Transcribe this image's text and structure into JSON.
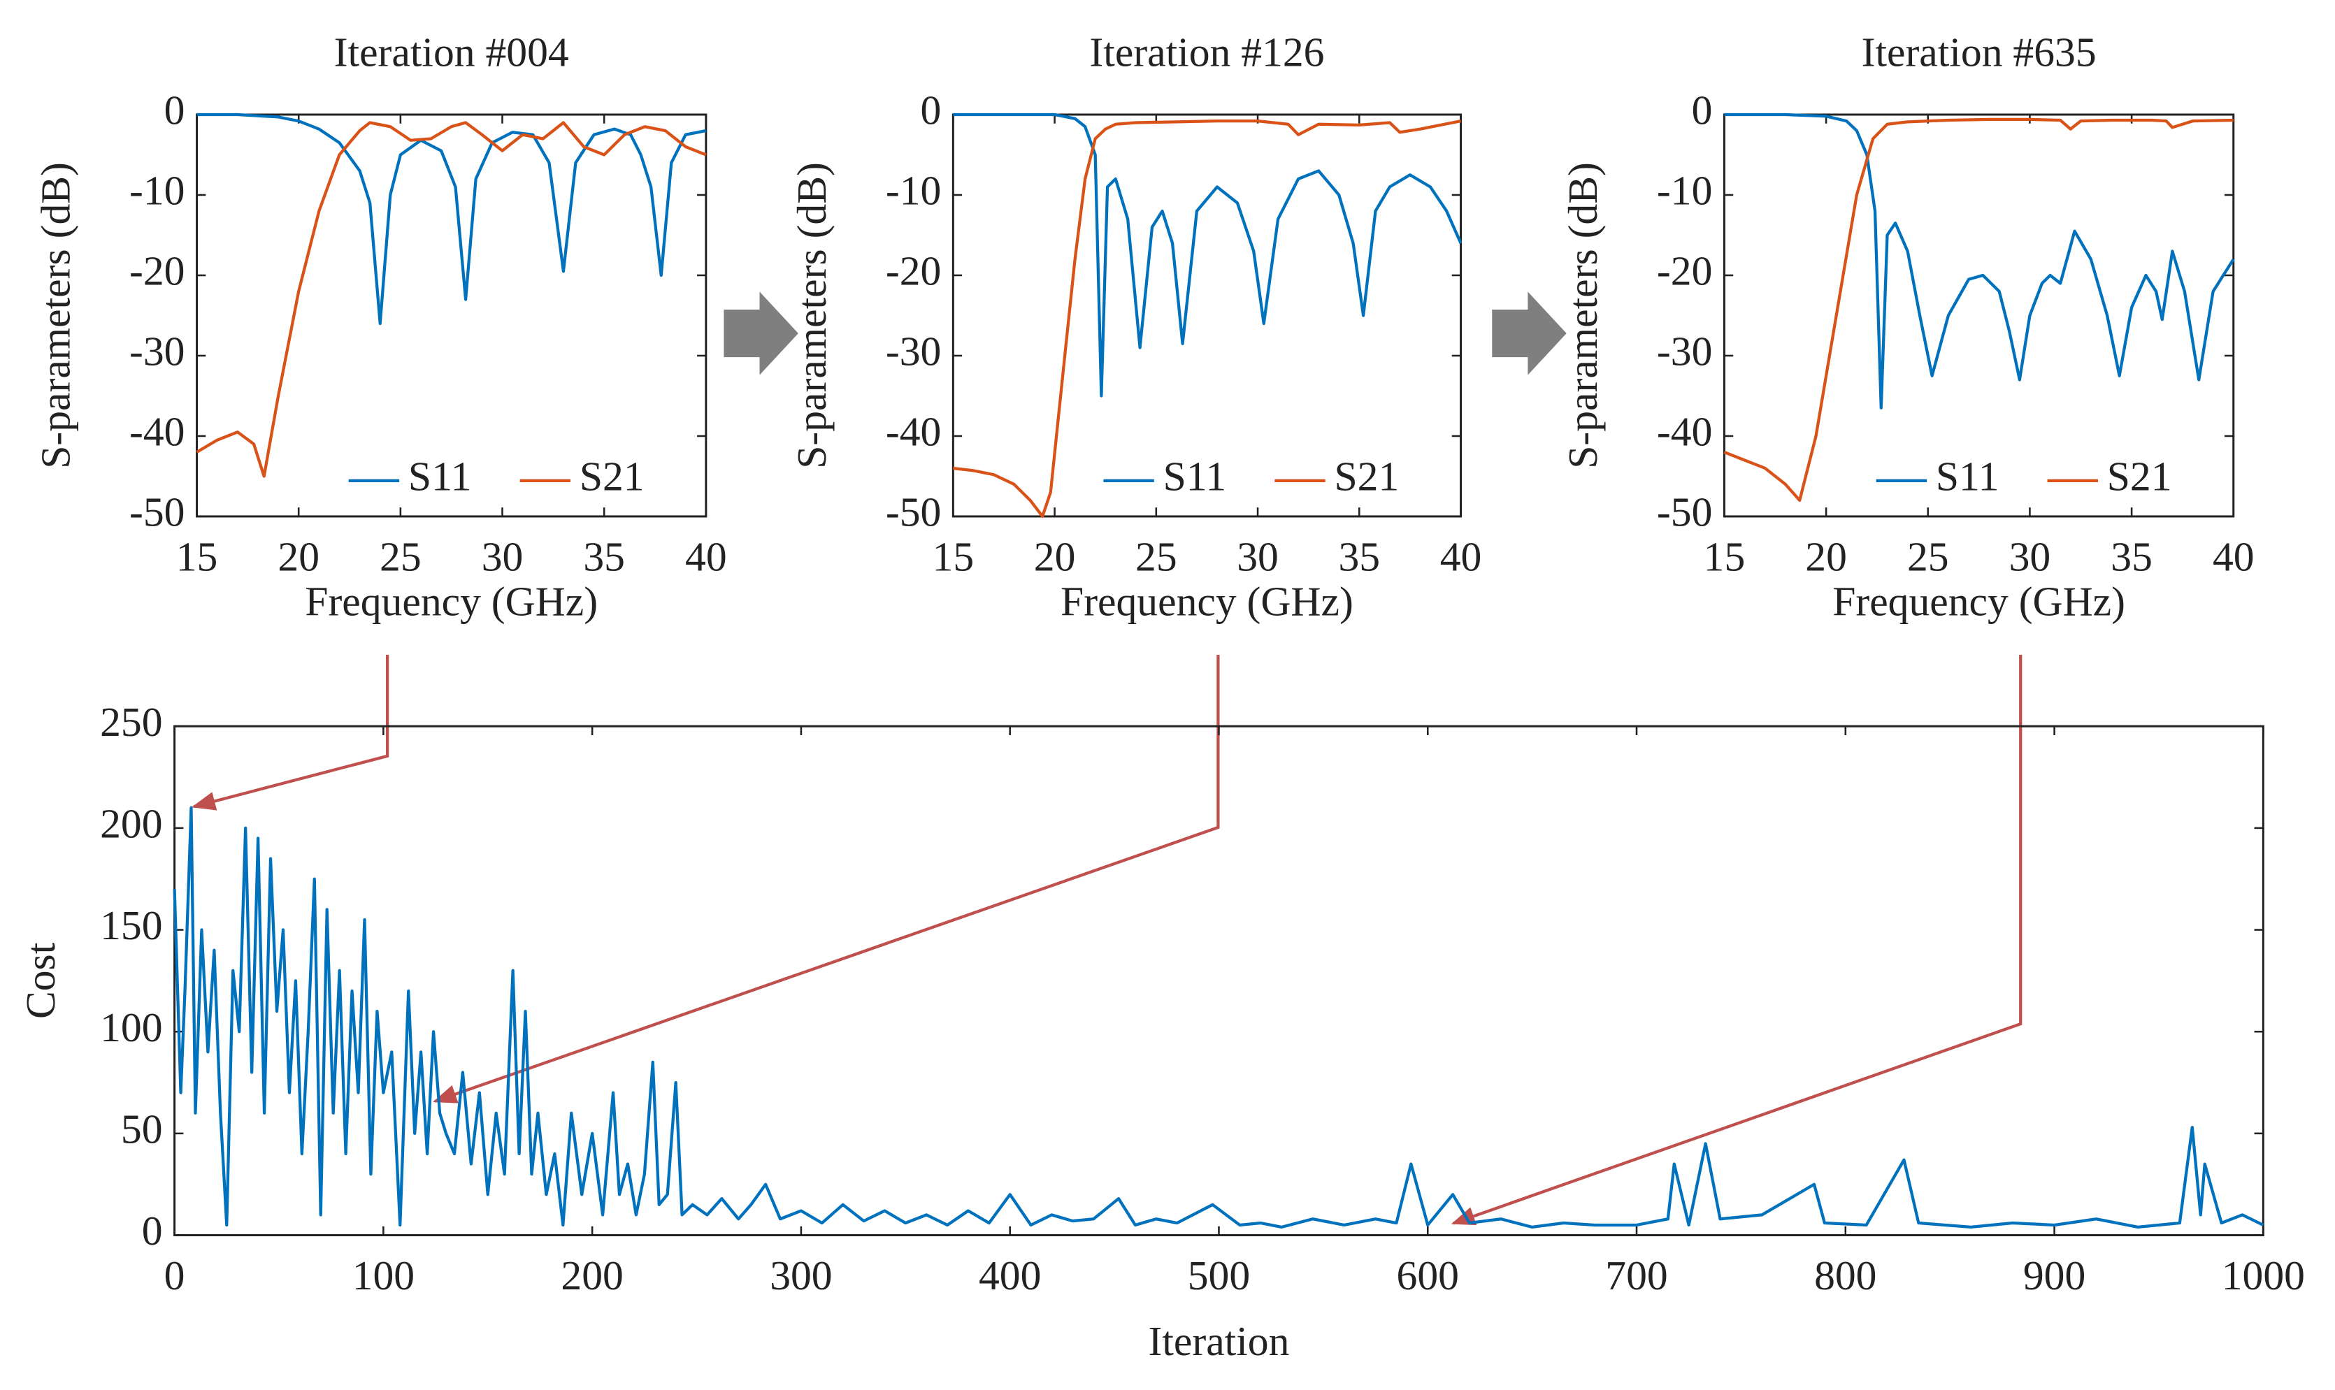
{
  "chart_data": [
    {
      "type": "line",
      "title": "Iteration #004",
      "xlabel": "Frequency (GHz)",
      "ylabel": "S-parameters (dB)",
      "xlim": [
        15,
        40
      ],
      "xticks": [
        15,
        20,
        25,
        30,
        35,
        40
      ],
      "ylim": [
        -50,
        0
      ],
      "yticks": [
        -50,
        -40,
        -30,
        -20,
        -10,
        0
      ],
      "legend": "lower right",
      "series": [
        {
          "name": "S11",
          "color": "#0072bd",
          "x": [
            15,
            17,
            19,
            20,
            21,
            22,
            23,
            23.5,
            24,
            24.5,
            25,
            26,
            27,
            27.7,
            28.2,
            28.7,
            29.5,
            30.5,
            31.5,
            32.3,
            33,
            33.6,
            34.5,
            35.5,
            36.3,
            36.8,
            37.3,
            37.8,
            38.3,
            39,
            40
          ],
          "values": [
            0,
            0,
            -0.3,
            -0.8,
            -1.8,
            -3.5,
            -7,
            -11,
            -26,
            -10,
            -5,
            -3.2,
            -4.5,
            -9,
            -23,
            -8,
            -3.5,
            -2.2,
            -2.5,
            -6,
            -19.5,
            -6,
            -2.5,
            -1.8,
            -2.5,
            -5,
            -9,
            -20,
            -6,
            -2.5,
            -2
          ]
        },
        {
          "name": "S21",
          "color": "#d95319",
          "x": [
            15,
            16,
            17,
            17.8,
            18.3,
            19,
            20,
            21,
            22,
            23,
            23.5,
            24.5,
            25.5,
            26.5,
            27.5,
            28.2,
            29,
            30,
            31,
            32,
            33,
            34,
            35,
            36,
            37,
            38,
            39,
            40
          ],
          "values": [
            -42,
            -40.5,
            -39.5,
            -41,
            -45,
            -35,
            -22,
            -12,
            -5,
            -2,
            -1,
            -1.5,
            -3.2,
            -3,
            -1.5,
            -1,
            -2.5,
            -4.5,
            -2.5,
            -3,
            -1,
            -4,
            -5,
            -2.5,
            -1.5,
            -2,
            -4,
            -5
          ]
        }
      ]
    },
    {
      "type": "line",
      "title": "Iteration #126",
      "xlabel": "Frequency (GHz)",
      "ylabel": "S-parameters (dB)",
      "xlim": [
        15,
        40
      ],
      "xticks": [
        15,
        20,
        25,
        30,
        35,
        40
      ],
      "ylim": [
        -50,
        0
      ],
      "yticks": [
        -50,
        -40,
        -30,
        -20,
        -10,
        0
      ],
      "legend": "lower right",
      "series": [
        {
          "name": "S11",
          "color": "#0072bd",
          "x": [
            15,
            18,
            20,
            21,
            21.5,
            22,
            22.3,
            22.6,
            23,
            23.6,
            24.2,
            24.8,
            25.3,
            25.8,
            26.3,
            27,
            28,
            29,
            29.8,
            30.3,
            31,
            32,
            33,
            34,
            34.7,
            35.2,
            35.8,
            36.5,
            37.5,
            38.5,
            39.3,
            40
          ],
          "values": [
            0,
            0,
            0,
            -0.5,
            -1.5,
            -5,
            -35,
            -9,
            -8,
            -13,
            -29,
            -14,
            -12,
            -16,
            -28.5,
            -12,
            -9,
            -11,
            -17,
            -26,
            -13,
            -8,
            -7,
            -10,
            -16,
            -25,
            -12,
            -9,
            -7.5,
            -9,
            -12,
            -16
          ]
        },
        {
          "name": "S21",
          "color": "#d95319",
          "x": [
            15,
            16,
            17,
            18,
            18.8,
            19.4,
            19.8,
            20.5,
            21,
            21.5,
            22,
            22.5,
            23,
            24,
            26,
            28,
            30,
            31.5,
            32,
            33,
            35,
            36.5,
            37,
            38,
            40
          ],
          "values": [
            -44,
            -44.3,
            -44.8,
            -46,
            -48,
            -50,
            -47,
            -30,
            -18,
            -8,
            -3,
            -1.8,
            -1.2,
            -1,
            -0.9,
            -0.8,
            -0.8,
            -1.2,
            -2.5,
            -1.2,
            -1.3,
            -1,
            -2.2,
            -1.8,
            -0.8
          ]
        }
      ]
    },
    {
      "type": "line",
      "title": "Iteration #635",
      "xlabel": "Frequency (GHz)",
      "ylabel": "S-parameters (dB)",
      "xlim": [
        15,
        40
      ],
      "xticks": [
        15,
        20,
        25,
        30,
        35,
        40
      ],
      "ylim": [
        -50,
        0
      ],
      "yticks": [
        -50,
        -40,
        -30,
        -20,
        -10,
        0
      ],
      "legend": "lower right",
      "series": [
        {
          "name": "S11",
          "color": "#0072bd",
          "x": [
            15,
            18,
            20,
            21,
            21.5,
            22,
            22.4,
            22.7,
            23,
            23.4,
            24,
            24.6,
            25.2,
            26,
            27,
            27.7,
            28.5,
            29,
            29.5,
            30,
            30.6,
            31,
            31.5,
            32.2,
            33,
            33.8,
            34.4,
            35,
            35.7,
            36.2,
            36.5,
            37,
            37.6,
            38.3,
            39,
            40
          ],
          "values": [
            0,
            0,
            -0.2,
            -0.8,
            -2,
            -5,
            -12,
            -36.5,
            -15,
            -13.5,
            -17,
            -25,
            -32.5,
            -25,
            -20.5,
            -20,
            -22,
            -27,
            -33,
            -25,
            -21,
            -20,
            -21,
            -14.5,
            -18,
            -25,
            -32.5,
            -24,
            -20,
            -22,
            -25.5,
            -17,
            -22,
            -33,
            -22,
            -18
          ]
        },
        {
          "name": "S21",
          "color": "#d95319",
          "x": [
            15,
            16,
            17,
            18,
            18.7,
            19.5,
            20.5,
            21.5,
            22.3,
            23,
            24,
            26,
            28,
            30,
            31.5,
            32,
            32.5,
            34,
            36,
            36.7,
            37,
            38,
            40
          ],
          "values": [
            -42,
            -43,
            -44,
            -46,
            -48,
            -40,
            -25,
            -10,
            -3,
            -1.2,
            -0.9,
            -0.7,
            -0.6,
            -0.6,
            -0.7,
            -1.8,
            -0.8,
            -0.7,
            -0.7,
            -0.8,
            -1.6,
            -0.8,
            -0.7
          ]
        }
      ]
    },
    {
      "type": "line",
      "xlabel": "Iteration",
      "ylabel": "Cost",
      "color": "#0072bd",
      "xlim": [
        0,
        1000
      ],
      "xticks": [
        0,
        100,
        200,
        300,
        400,
        500,
        600,
        700,
        800,
        900,
        1000
      ],
      "ylim": [
        0,
        250
      ],
      "yticks": [
        0,
        50,
        100,
        150,
        200,
        250
      ],
      "x": [
        0,
        3,
        5,
        8,
        10,
        13,
        16,
        19,
        22,
        25,
        28,
        31,
        34,
        37,
        40,
        43,
        46,
        49,
        52,
        55,
        58,
        61,
        64,
        67,
        70,
        73,
        76,
        79,
        82,
        85,
        88,
        91,
        94,
        97,
        100,
        104,
        108,
        112,
        115,
        118,
        121,
        124,
        127,
        130,
        134,
        138,
        142,
        146,
        150,
        154,
        158,
        162,
        165,
        168,
        171,
        174,
        178,
        182,
        186,
        190,
        195,
        200,
        205,
        210,
        213,
        217,
        221,
        225,
        229,
        232,
        236,
        240,
        243,
        248,
        255,
        262,
        270,
        276,
        283,
        290,
        300,
        310,
        320,
        330,
        340,
        350,
        360,
        370,
        380,
        390,
        400,
        410,
        420,
        430,
        440,
        452,
        460,
        470,
        480,
        497,
        510,
        520,
        530,
        545,
        560,
        575,
        585,
        592,
        600,
        612,
        620,
        635,
        650,
        665,
        680,
        700,
        715,
        718,
        725,
        733,
        740,
        760,
        785,
        790,
        810,
        828,
        835,
        860,
        880,
        900,
        920,
        940,
        960,
        966,
        970,
        972,
        980,
        990,
        1000
      ],
      "values": [
        170,
        70,
        120,
        210,
        60,
        150,
        90,
        140,
        60,
        5,
        130,
        100,
        200,
        80,
        195,
        60,
        185,
        110,
        150,
        70,
        125,
        40,
        100,
        175,
        10,
        160,
        60,
        130,
        40,
        120,
        70,
        155,
        30,
        110,
        70,
        90,
        5,
        120,
        50,
        90,
        40,
        100,
        60,
        50,
        40,
        80,
        35,
        70,
        20,
        60,
        30,
        130,
        40,
        110,
        30,
        60,
        20,
        40,
        5,
        60,
        20,
        50,
        10,
        70,
        20,
        35,
        10,
        30,
        85,
        15,
        20,
        75,
        10,
        15,
        10,
        18,
        8,
        15,
        25,
        8,
        12,
        6,
        15,
        7,
        12,
        6,
        10,
        5,
        12,
        6,
        20,
        5,
        10,
        7,
        8,
        18,
        5,
        8,
        6,
        15,
        5,
        6,
        4,
        8,
        5,
        8,
        6,
        35,
        5,
        20,
        6,
        8,
        4,
        6,
        5,
        5,
        8,
        35,
        5,
        45,
        8,
        10,
        25,
        6,
        5,
        37,
        6,
        4,
        6,
        5,
        8,
        4,
        6,
        53,
        10,
        35,
        6,
        10,
        5
      ]
    }
  ]
}
